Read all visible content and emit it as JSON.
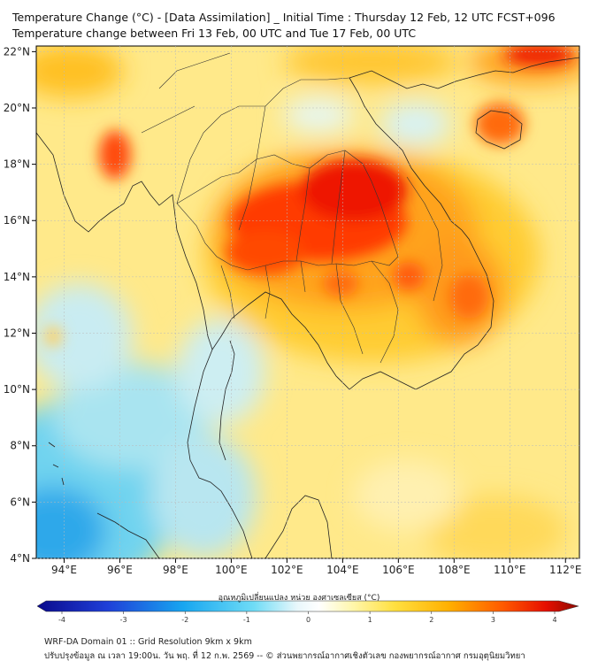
{
  "header": {
    "title_line1": "Temperature Change (°C) - [Data Assimilation] _ Initial Time : Thursday 12 Feb, 12 UTC FCST+096",
    "title_line2": "Temperature change between Fri 13 Feb, 00 UTC and Tue 17 Feb, 00 UTC"
  },
  "map": {
    "lon_ticks": [
      "94°E",
      "96°E",
      "98°E",
      "100°E",
      "102°E",
      "104°E",
      "106°E",
      "108°E",
      "110°E",
      "112°E"
    ],
    "lat_ticks": [
      "22°N",
      "20°N",
      "18°N",
      "16°N",
      "14°N",
      "12°N",
      "10°N",
      "8°N",
      "6°N",
      "4°N"
    ],
    "lon_range": [
      93,
      112.5
    ],
    "lat_range": [
      4,
      22.2
    ]
  },
  "colorbar": {
    "title": "อุณหภูมิเปลี่ยนแปลง หน่วย องศาเซลเซียส (°C)",
    "ticks": [
      "-4",
      "-3",
      "-2",
      "-1",
      "0",
      "1",
      "2",
      "3",
      "4"
    ],
    "range": [
      -4,
      4
    ]
  },
  "footer": {
    "line1": "WRF-DA Domain 01 :: Grid Resolution 9km x 9km",
    "line2": "ปรับปรุงข้อมูล ณ เวลา 19:00น. วัน พฤ. ที่ 12 ก.พ. 2569 -- © ส่วนพยากรณ์อากาศเชิงตัวเลข กองพยากรณ์อากาศ กรมอุตุนิยมวิทยา"
  }
}
